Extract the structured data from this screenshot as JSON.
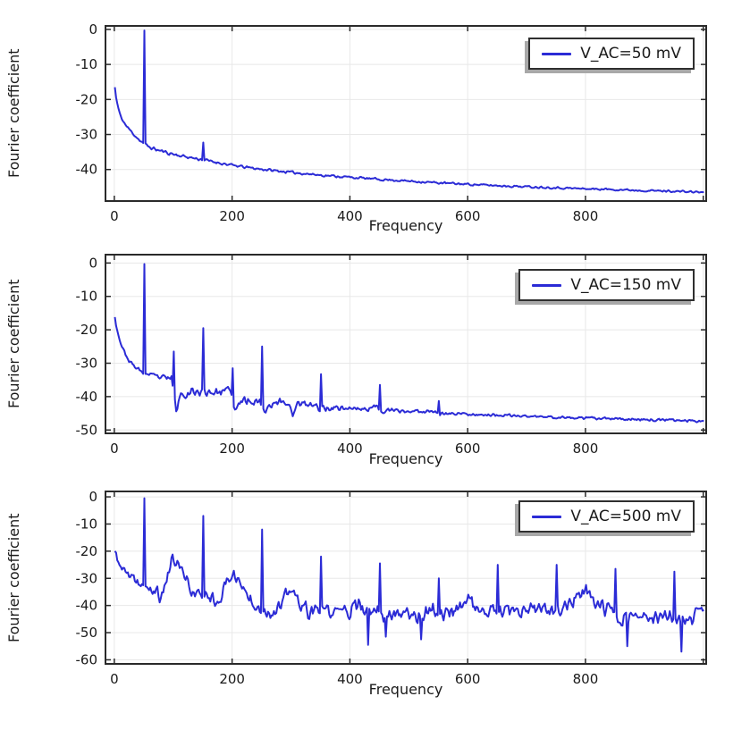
{
  "style": {
    "line_color": "#2b2bd6",
    "grid_color": "#e8e8e8",
    "frame_color": "#2a2a2a",
    "text_color": "#1a1a1a",
    "legend_border": "#2f2f2f",
    "legend_shadow": "#a8a8a8",
    "legend_bg": "#ffffff",
    "background": "#ffffff"
  },
  "chart_data": [
    {
      "type": "line",
      "title": "",
      "xlabel": "Frequency",
      "ylabel": "Fourier coefficient",
      "legend": "V_AC=50 mV",
      "legend_position": "top-right",
      "grid": true,
      "xlim": [
        -15,
        1005
      ],
      "ylim": [
        -49,
        1
      ],
      "xticks": [
        0,
        200,
        400,
        600,
        800,
        1000
      ],
      "xtick_labels": [
        "0",
        "200",
        "400",
        "600",
        "800",
        ""
      ],
      "yticks": [
        0,
        -10,
        -20,
        -30,
        -40
      ],
      "series": [
        {
          "name": "V_AC=50 mV",
          "noise_seed": 11,
          "baseline": [
            [
              1,
              -16.5
            ],
            [
              3,
              -19.5
            ],
            [
              6,
              -22
            ],
            [
              10,
              -24.5
            ],
            [
              15,
              -26.2
            ],
            [
              20,
              -27.5
            ],
            [
              28,
              -29
            ],
            [
              36,
              -30.5
            ],
            [
              44,
              -31.8
            ],
            [
              52,
              -32.8
            ],
            [
              62,
              -33.8
            ],
            [
              75,
              -34.5
            ],
            [
              90,
              -35.2
            ],
            [
              110,
              -36
            ],
            [
              130,
              -36.6
            ],
            [
              150,
              -37.2
            ],
            [
              175,
              -38
            ],
            [
              200,
              -38.8
            ],
            [
              230,
              -39.5
            ],
            [
              260,
              -40.1
            ],
            [
              300,
              -40.8
            ],
            [
              350,
              -41.6
            ],
            [
              400,
              -42.2
            ],
            [
              450,
              -42.8
            ],
            [
              500,
              -43.3
            ],
            [
              550,
              -43.8
            ],
            [
              600,
              -44.2
            ],
            [
              650,
              -44.6
            ],
            [
              700,
              -44.9
            ],
            [
              750,
              -45.2
            ],
            [
              800,
              -45.5
            ],
            [
              850,
              -45.7
            ],
            [
              900,
              -46
            ],
            [
              950,
              -46.2
            ],
            [
              1001,
              -46.5
            ]
          ],
          "noise_amp": [
            [
              1,
              0.25
            ],
            [
              80,
              0.45
            ],
            [
              200,
              0.35
            ],
            [
              500,
              0.3
            ],
            [
              1001,
              0.25
            ]
          ],
          "peaks": [
            [
              50,
              -0.3
            ],
            [
              150,
              -32.3
            ]
          ]
        }
      ]
    },
    {
      "type": "line",
      "title": "",
      "xlabel": "Frequency",
      "ylabel": "Fourier coefficient",
      "legend": "V_AC=150 mV",
      "legend_position": "top-right",
      "grid": true,
      "xlim": [
        -15,
        1005
      ],
      "ylim": [
        -51,
        2.5
      ],
      "xticks": [
        0,
        200,
        400,
        600,
        800,
        1000
      ],
      "xtick_labels": [
        "0",
        "200",
        "400",
        "600",
        "800",
        ""
      ],
      "yticks": [
        0,
        -10,
        -20,
        -30,
        -40,
        -50
      ],
      "series": [
        {
          "name": "V_AC=150 mV",
          "noise_seed": 23,
          "baseline": [
            [
              1,
              -16
            ],
            [
              3,
              -18.5
            ],
            [
              6,
              -21
            ],
            [
              10,
              -23.5
            ],
            [
              14,
              -25.5
            ],
            [
              18,
              -27
            ],
            [
              24,
              -29
            ],
            [
              30,
              -30.3
            ],
            [
              38,
              -31.5
            ],
            [
              46,
              -32.5
            ],
            [
              56,
              -33.3
            ],
            [
              66,
              -33.8
            ],
            [
              78,
              -34.2
            ],
            [
              90,
              -34.6
            ],
            [
              97,
              -34.2
            ],
            [
              102,
              -40
            ],
            [
              105,
              -45.3
            ],
            [
              109,
              -41
            ],
            [
              114,
              -39.2
            ],
            [
              124,
              -38.8
            ],
            [
              136,
              -38.4
            ],
            [
              148,
              -38.7
            ],
            [
              162,
              -38.5
            ],
            [
              176,
              -38.7
            ],
            [
              190,
              -38.6
            ],
            [
              197,
              -37.2
            ],
            [
              202,
              -43
            ],
            [
              206,
              -44.8
            ],
            [
              212,
              -41.8
            ],
            [
              222,
              -41
            ],
            [
              234,
              -41.2
            ],
            [
              246,
              -41.4
            ],
            [
              252,
              -43.2
            ],
            [
              257,
              -44.3
            ],
            [
              264,
              -42.2
            ],
            [
              276,
              -41.6
            ],
            [
              290,
              -41.8
            ],
            [
              300,
              -42.8
            ],
            [
              304,
              -45.6
            ],
            [
              310,
              -42.3
            ],
            [
              324,
              -42.4
            ],
            [
              340,
              -42.8
            ],
            [
              348,
              -43.3
            ],
            [
              356,
              -43.6
            ],
            [
              372,
              -43.2
            ],
            [
              390,
              -43.4
            ],
            [
              410,
              -43.6
            ],
            [
              430,
              -43.8
            ],
            [
              446,
              -42.8
            ],
            [
              453,
              -44.2
            ],
            [
              470,
              -44.2
            ],
            [
              495,
              -44.4
            ],
            [
              520,
              -44.5
            ],
            [
              545,
              -44.2
            ],
            [
              553,
              -45.2
            ],
            [
              575,
              -45
            ],
            [
              610,
              -45.3
            ],
            [
              650,
              -45.6
            ],
            [
              690,
              -45.8
            ],
            [
              730,
              -46.1
            ],
            [
              770,
              -46.3
            ],
            [
              810,
              -46.5
            ],
            [
              850,
              -46.7
            ],
            [
              890,
              -46.8
            ],
            [
              930,
              -47
            ],
            [
              1001,
              -47.3
            ]
          ],
          "noise_amp": [
            [
              1,
              0.3
            ],
            [
              50,
              0.6
            ],
            [
              95,
              0.8
            ],
            [
              115,
              1.3
            ],
            [
              195,
              1.1
            ],
            [
              215,
              1.2
            ],
            [
              330,
              1
            ],
            [
              420,
              0.7
            ],
            [
              600,
              0.4
            ],
            [
              1001,
              0.35
            ]
          ],
          "peaks": [
            [
              50,
              -0.3
            ],
            [
              100,
              -26.5
            ],
            [
              150,
              -19.5
            ],
            [
              200,
              -31.5
            ],
            [
              250,
              -25
            ],
            [
              350,
              -33.3
            ],
            [
              450,
              -36.5
            ],
            [
              550,
              -41.3
            ]
          ]
        }
      ]
    },
    {
      "type": "line",
      "title": "",
      "xlabel": "Frequency",
      "ylabel": "Fourier coefficient",
      "legend": "V_AC=500 mV",
      "legend_position": "top-right",
      "grid": true,
      "xlim": [
        -15,
        1005
      ],
      "ylim": [
        -61.5,
        2
      ],
      "xticks": [
        0,
        200,
        400,
        600,
        800,
        1000
      ],
      "xtick_labels": [
        "0",
        "200",
        "400",
        "600",
        "800",
        ""
      ],
      "yticks": [
        0,
        -10,
        -20,
        -30,
        -40,
        -50,
        -60
      ],
      "series": [
        {
          "name": "V_AC=500 mV",
          "noise_seed": 37,
          "baseline": [
            [
              1,
              -20
            ],
            [
              4,
              -22.5
            ],
            [
              8,
              -24.5
            ],
            [
              14,
              -26.5
            ],
            [
              22,
              -28.5
            ],
            [
              30,
              -30.5
            ],
            [
              38,
              -31.5
            ],
            [
              46,
              -31.8
            ],
            [
              54,
              -33
            ],
            [
              62,
              -35.5
            ],
            [
              70,
              -34
            ],
            [
              78,
              -37.5
            ],
            [
              84,
              -34.5
            ],
            [
              90,
              -28.5
            ],
            [
              96,
              -24.5
            ],
            [
              101,
              -23.2
            ],
            [
              107,
              -24.5
            ],
            [
              114,
              -27
            ],
            [
              121,
              -30
            ],
            [
              128,
              -33
            ],
            [
              136,
              -36
            ],
            [
              144,
              -36.3
            ],
            [
              152,
              -35.6
            ],
            [
              160,
              -36.2
            ],
            [
              170,
              -37.4
            ],
            [
              180,
              -37.8
            ],
            [
              188,
              -33
            ],
            [
              196,
              -28.8
            ],
            [
              202,
              -28.2
            ],
            [
              208,
              -30
            ],
            [
              215,
              -32.5
            ],
            [
              224,
              -35.5
            ],
            [
              233,
              -37.8
            ],
            [
              242,
              -39.8
            ],
            [
              252,
              -41
            ],
            [
              262,
              -42.8
            ],
            [
              272,
              -42
            ],
            [
              282,
              -41
            ],
            [
              292,
              -35.8
            ],
            [
              300,
              -34.4
            ],
            [
              308,
              -36.6
            ],
            [
              318,
              -40.5
            ],
            [
              328,
              -42
            ],
            [
              340,
              -43
            ],
            [
              352,
              -41.2
            ],
            [
              364,
              -42.3
            ],
            [
              376,
              -43
            ],
            [
              388,
              -41.2
            ],
            [
              398,
              -42
            ],
            [
              408,
              -41
            ],
            [
              416,
              -40.2
            ],
            [
              426,
              -42.5
            ],
            [
              436,
              -43
            ],
            [
              448,
              -41.2
            ],
            [
              458,
              -44
            ],
            [
              468,
              -43
            ],
            [
              480,
              -42
            ],
            [
              492,
              -43
            ],
            [
              504,
              -42.3
            ],
            [
              514,
              -44
            ],
            [
              526,
              -43
            ],
            [
              538,
              -41.2
            ],
            [
              550,
              -42.3
            ],
            [
              562,
              -43
            ],
            [
              574,
              -42
            ],
            [
              586,
              -40
            ],
            [
              598,
              -37.6
            ],
            [
              608,
              -39
            ],
            [
              620,
              -42
            ],
            [
              632,
              -43
            ],
            [
              644,
              -42
            ],
            [
              658,
              -42.5
            ],
            [
              672,
              -42.8
            ],
            [
              686,
              -43
            ],
            [
              700,
              -42
            ],
            [
              714,
              -41.8
            ],
            [
              728,
              -41.5
            ],
            [
              742,
              -41.8
            ],
            [
              756,
              -42
            ],
            [
              768,
              -40
            ],
            [
              780,
              -37.8
            ],
            [
              792,
              -36
            ],
            [
              800,
              -35.2
            ],
            [
              808,
              -36.2
            ],
            [
              818,
              -38.5
            ],
            [
              828,
              -40.5
            ],
            [
              838,
              -42
            ],
            [
              850,
              -42.5
            ],
            [
              862,
              -44.5
            ],
            [
              874,
              -44
            ],
            [
              886,
              -45
            ],
            [
              898,
              -44.2
            ],
            [
              910,
              -45.5
            ],
            [
              922,
              -44.3
            ],
            [
              934,
              -44.8
            ],
            [
              946,
              -43.5
            ],
            [
              958,
              -45.5
            ],
            [
              970,
              -47
            ],
            [
              982,
              -45
            ],
            [
              992,
              -41.5
            ],
            [
              1001,
              -39.5
            ]
          ],
          "noise_amp": [
            [
              1,
              1.3
            ],
            [
              60,
              2.2
            ],
            [
              150,
              2.2
            ],
            [
              300,
              2.5
            ],
            [
              600,
              2.6
            ],
            [
              1001,
              2.5
            ]
          ],
          "peaks": [
            [
              50,
              -0.5
            ],
            [
              150,
              -7
            ],
            [
              250,
              -12
            ],
            [
              350,
              -22
            ],
            [
              430,
              -54.5
            ],
            [
              450,
              -24.5
            ],
            [
              460,
              -51.5
            ],
            [
              520,
              -52.5
            ],
            [
              550,
              -30
            ],
            [
              650,
              -25
            ],
            [
              750,
              -25
            ],
            [
              850,
              -26.5
            ],
            [
              870,
              -55
            ],
            [
              950,
              -27.5
            ],
            [
              962,
              -57
            ]
          ]
        }
      ]
    }
  ]
}
